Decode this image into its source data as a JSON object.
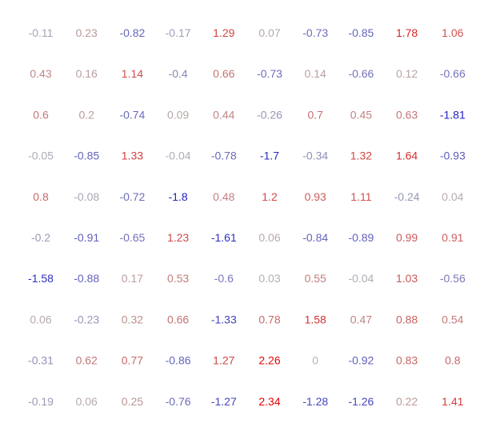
{
  "chart_data": {
    "type": "heatmap",
    "title": "",
    "xlabel": "",
    "ylabel": "",
    "grid": false,
    "value_range": [
      -2.34,
      2.34
    ],
    "colors": {
      "negative": "#0000c8",
      "neutral": "#b4b4b4",
      "positive": "#e60000"
    },
    "rows": [
      [
        -0.11,
        0.23,
        -0.82,
        -0.17,
        1.29,
        0.07,
        -0.73,
        -0.85,
        1.78,
        1.06
      ],
      [
        0.43,
        0.16,
        1.14,
        -0.4,
        0.66,
        -0.73,
        0.14,
        -0.66,
        0.12,
        -0.66
      ],
      [
        0.6,
        0.2,
        -0.74,
        0.09,
        0.44,
        -0.26,
        0.7,
        0.45,
        0.63,
        -1.81
      ],
      [
        -0.05,
        -0.85,
        1.33,
        -0.04,
        -0.78,
        -1.7,
        -0.34,
        1.32,
        1.64,
        -0.93
      ],
      [
        0.8,
        -0.08,
        -0.72,
        -1.8,
        0.48,
        1.2,
        0.93,
        1.11,
        -0.24,
        0.04
      ],
      [
        -0.2,
        -0.91,
        -0.65,
        1.23,
        -1.61,
        0.06,
        -0.84,
        -0.89,
        0.99,
        0.91
      ],
      [
        -1.58,
        -0.88,
        0.17,
        0.53,
        -0.6,
        0.03,
        0.55,
        -0.04,
        1.03,
        -0.56
      ],
      [
        0.06,
        -0.23,
        0.32,
        0.66,
        -1.33,
        0.78,
        1.58,
        0.47,
        0.88,
        0.54
      ],
      [
        -0.31,
        0.62,
        0.77,
        -0.86,
        1.27,
        2.26,
        0,
        -0.92,
        0.83,
        0.8
      ],
      [
        -0.19,
        0.06,
        0.25,
        -0.76,
        -1.27,
        2.34,
        -1.28,
        -1.26,
        0.22,
        1.41
      ]
    ]
  }
}
